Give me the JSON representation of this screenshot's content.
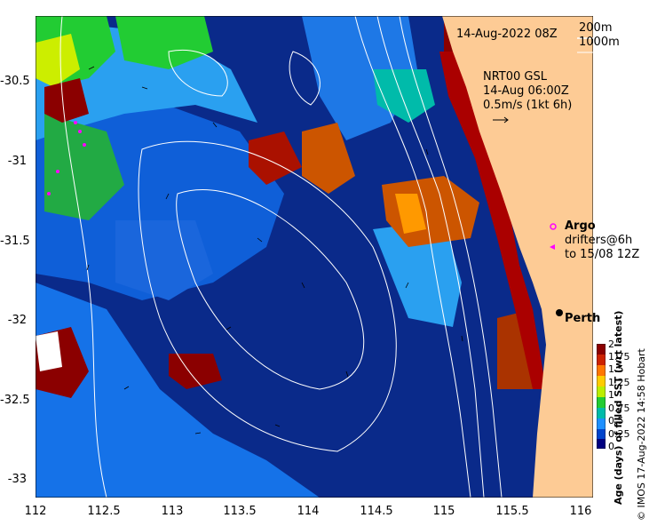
{
  "header": {
    "date": "14-Aug-2022 08Z",
    "depth_200": "200m",
    "depth_1000": "1000m"
  },
  "current_legend": {
    "line1": "NRT00 GSL",
    "line2": "14-Aug 06:00Z",
    "line3": "0.5m/s (1kt 6h)"
  },
  "argo_legend": {
    "argo": "Argo",
    "drifters": "drifters@6h",
    "drifters_to": "to 15/08 12Z"
  },
  "place": {
    "perth": "Perth"
  },
  "axes": {
    "x_ticks": [
      "112",
      "112.5",
      "113",
      "113.5",
      "114",
      "114.5",
      "115",
      "115.5",
      "116"
    ],
    "y_ticks": [
      "-30.5",
      "-31",
      "-31.5",
      "-32",
      "-32.5",
      "-33"
    ]
  },
  "colorbar": {
    "title": "Age (days) of filled SST (wrt latest)",
    "ticks": [
      "2",
      "1.75",
      "1.5",
      "1.25",
      "1",
      "0.75",
      "0.5",
      "0.25",
      "0"
    ],
    "colors": [
      "#8b0000",
      "#cc2200",
      "#ff7700",
      "#ffcc00",
      "#bbee00",
      "#22cc33",
      "#00bbaa",
      "#1e90ff",
      "#0044cc",
      "#000080"
    ]
  },
  "credit": "© IMOS 17-Aug-2022 14:58 Hobart",
  "colors": {
    "land": "#fdcb95",
    "deep_blue": "#0a2a8a",
    "mid_blue": "#0f5fd8",
    "light_blue": "#2aa0f0",
    "argo_marker": "#ff00ff"
  }
}
